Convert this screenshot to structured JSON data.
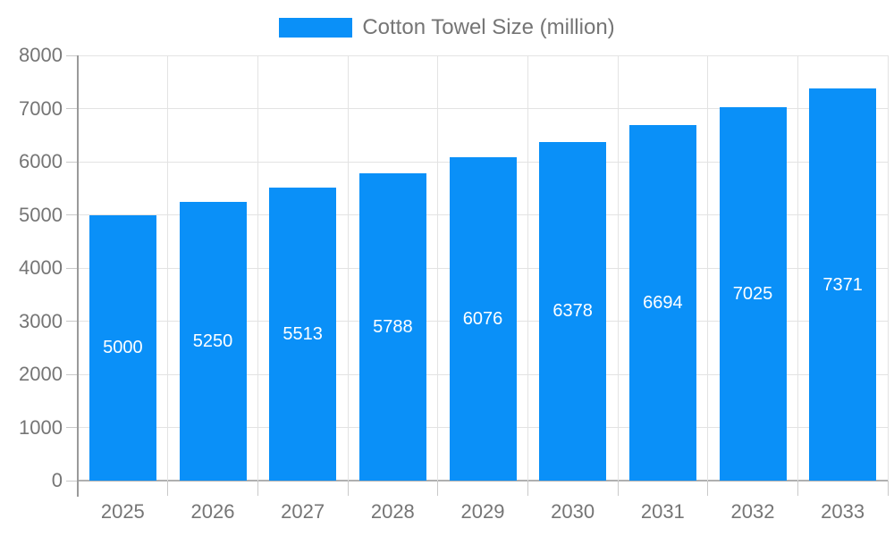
{
  "chart_data": {
    "type": "bar",
    "title": "Cotton Towel Size (million)",
    "categories": [
      "2025",
      "2026",
      "2027",
      "2028",
      "2029",
      "2030",
      "2031",
      "2032",
      "2033"
    ],
    "values": [
      5000,
      5250,
      5513,
      5788,
      6076,
      6378,
      6694,
      7025,
      7371
    ],
    "value_labels": [
      "5000",
      "5250",
      "5513",
      "5788",
      "6076",
      "6378",
      "6694",
      "7025",
      "7371"
    ],
    "xlabel": "",
    "ylabel": "",
    "ylim": [
      0,
      8000
    ],
    "yticks": [
      0,
      1000,
      2000,
      3000,
      4000,
      5000,
      6000,
      7000,
      8000
    ],
    "ytick_labels": [
      "0",
      "1000",
      "2000",
      "3000",
      "4000",
      "5000",
      "6000",
      "7000",
      "8000"
    ],
    "grid": true,
    "legend_position": "top",
    "colors": {
      "bar": "#0a90f8",
      "bar_value_text": "#ffffff",
      "axis_text": "#757575",
      "legend_text": "#757575",
      "gridline": "#e3e3e3",
      "zero_line": "#b0b0b0",
      "axis_line": "#9a9a9a",
      "tick": "#c9c9c9",
      "background": "#ffffff"
    }
  }
}
